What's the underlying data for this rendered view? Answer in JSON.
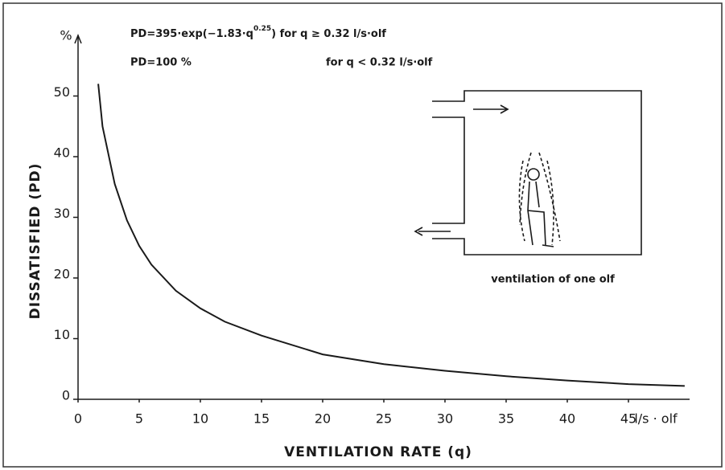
{
  "chart_data": {
    "type": "line",
    "y_label": "DISSATISFIED  (PD)",
    "x_label": "VENTILATION RATE  (q)",
    "y_unit": "%",
    "x_unit": "l/s · olf",
    "annotations": [
      "PD=395·exp(−1.83·q",
      "0.25",
      ")  for q ≥ 0.32 l/s·olf",
      "",
      "PD=100 %",
      "for q < 0.32 l/s·olf",
      "ventilation of one olf"
    ],
    "x": [
      1.65,
      2,
      3,
      4,
      5,
      6,
      8,
      10,
      12,
      15,
      20,
      25,
      30,
      35,
      40,
      45,
      49.6
    ],
    "values": [
      52,
      45,
      35.5,
      29.5,
      25.3,
      22.2,
      17.9,
      15,
      12.8,
      10.5,
      7.4,
      5.8,
      4.7,
      3.8,
      3.1,
      2.5,
      2.2
    ],
    "color": "#1a1a1a",
    "xlim": [
      0,
      50
    ],
    "ylim": [
      0,
      60
    ],
    "xticks": [
      0,
      5,
      10,
      15,
      20,
      25,
      30,
      35,
      40,
      45
    ],
    "yticks": [
      0,
      10,
      20,
      30,
      40,
      50
    ]
  }
}
